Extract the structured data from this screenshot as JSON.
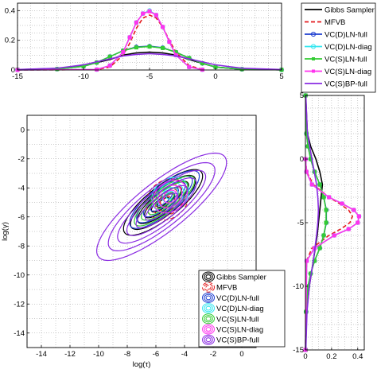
{
  "chart_data": [
    {
      "id": "top",
      "type": "line",
      "xlim": [
        -15,
        5
      ],
      "ylim": [
        0,
        0.45
      ],
      "xticks": [
        -15,
        -10,
        -5,
        0,
        5
      ],
      "yticks": [
        0,
        0.2,
        0.4
      ],
      "yticklabels": [
        "0",
        "0.2",
        "0.4"
      ],
      "grid": true,
      "series": [
        {
          "name": "Gibbs Sampler",
          "x": [
            -15,
            -12,
            -10,
            -8,
            -7,
            -6,
            -5,
            -4,
            -3,
            -2,
            0,
            2,
            5
          ],
          "y": [
            0.002,
            0.01,
            0.03,
            0.07,
            0.1,
            0.115,
            0.12,
            0.115,
            0.1,
            0.07,
            0.02,
            0.005,
            0.001
          ]
        },
        {
          "name": "MFVB",
          "x": [
            -15,
            -9,
            -8,
            -7,
            -6.5,
            -6,
            -5.5,
            -5,
            -4.5,
            -4,
            -3.5,
            -3,
            -2,
            -1
          ],
          "y": [
            0,
            0.002,
            0.02,
            0.1,
            0.18,
            0.28,
            0.35,
            0.37,
            0.35,
            0.29,
            0.2,
            0.12,
            0.03,
            0.003
          ]
        },
        {
          "name": "VC(D)LN-full",
          "x": [
            -15,
            -12,
            -10,
            -9,
            -8,
            -7,
            -6,
            -5,
            -4,
            -3,
            -2,
            -1,
            0,
            2,
            5
          ],
          "y": [
            0.002,
            0.006,
            0.025,
            0.05,
            0.09,
            0.13,
            0.155,
            0.16,
            0.15,
            0.12,
            0.08,
            0.045,
            0.02,
            0.005,
            0.001
          ]
        },
        {
          "name": "VC(D)LN-diag",
          "x": [
            -15,
            -9,
            -8,
            -7,
            -6.5,
            -6,
            -5.5,
            -5,
            -4.5,
            -4,
            -3.5,
            -3,
            -2,
            -1
          ],
          "y": [
            0,
            0.003,
            0.03,
            0.12,
            0.22,
            0.32,
            0.38,
            0.4,
            0.37,
            0.29,
            0.19,
            0.1,
            0.02,
            0.002
          ]
        },
        {
          "name": "VC(S)LN-full",
          "x": [
            -15,
            -12,
            -10,
            -9,
            -8,
            -7,
            -6,
            -5,
            -4,
            -3,
            -2,
            -1,
            0,
            2,
            5
          ],
          "y": [
            0.002,
            0.006,
            0.025,
            0.05,
            0.09,
            0.13,
            0.152,
            0.158,
            0.148,
            0.12,
            0.08,
            0.045,
            0.02,
            0.005,
            0.001
          ]
        },
        {
          "name": "VC(S)LN-diag",
          "x": [
            -15,
            -9,
            -8,
            -7,
            -6.5,
            -6,
            -5.5,
            -5,
            -4.5,
            -4,
            -3.5,
            -3,
            -2,
            -1
          ],
          "y": [
            0,
            0.003,
            0.03,
            0.12,
            0.22,
            0.32,
            0.38,
            0.395,
            0.37,
            0.29,
            0.19,
            0.1,
            0.02,
            0.002
          ]
        },
        {
          "name": "VC(S)BP-full",
          "x": [
            -15,
            -12,
            -10,
            -8,
            -7,
            -6,
            -5,
            -4,
            -3,
            -2,
            0,
            2,
            5
          ],
          "y": [
            0.003,
            0.012,
            0.035,
            0.075,
            0.095,
            0.105,
            0.11,
            0.105,
            0.095,
            0.075,
            0.035,
            0.012,
            0.003
          ]
        }
      ]
    },
    {
      "id": "main",
      "type": "contour",
      "xlim": [
        -15,
        1
      ],
      "ylim": [
        -15,
        1
      ],
      "xticks": [
        -14,
        -12,
        -10,
        -8,
        -6,
        -4,
        -2,
        0
      ],
      "yticks": [
        -14,
        -12,
        -10,
        -8,
        -6,
        -4,
        -2,
        0
      ],
      "xlabel": "log(τ)",
      "ylabel": "log(γ)",
      "grid": true,
      "legend_position": "bottom-right",
      "series": [
        {
          "name": "Gibbs Sampler",
          "center": [
            -5.5,
            -5
          ],
          "levels": [
            [
              3.4,
              1.1
            ],
            [
              2.8,
              0.9
            ],
            [
              2.2,
              0.7
            ],
            [
              1.6,
              0.5
            ],
            [
              1.0,
              0.33
            ],
            [
              0.5,
              0.18
            ]
          ]
        },
        {
          "name": "MFVB",
          "center": [
            -5.2,
            -4.8
          ],
          "levels": [
            [
              1.6,
              1.3
            ],
            [
              1.25,
              1.0
            ],
            [
              0.9,
              0.72
            ],
            [
              0.55,
              0.45
            ],
            [
              0.25,
              0.2
            ]
          ]
        },
        {
          "name": "VC(D)LN-full",
          "center": [
            -5.4,
            -4.8
          ],
          "levels": [
            [
              3.0,
              0.95
            ],
            [
              2.4,
              0.77
            ],
            [
              1.8,
              0.58
            ],
            [
              1.2,
              0.4
            ],
            [
              0.65,
              0.22
            ]
          ]
        },
        {
          "name": "VC(D)LN-diag",
          "center": [
            -5.0,
            -4.5
          ],
          "levels": [
            [
              1.4,
              1.1
            ],
            [
              1.0,
              0.8
            ],
            [
              0.6,
              0.48
            ],
            [
              0.3,
              0.24
            ]
          ]
        },
        {
          "name": "VC(S)LN-full",
          "center": [
            -5.4,
            -4.9
          ],
          "levels": [
            [
              2.6,
              0.8
            ],
            [
              2.0,
              0.62
            ],
            [
              1.4,
              0.45
            ],
            [
              0.8,
              0.27
            ]
          ]
        },
        {
          "name": "VC(S)LN-diag",
          "center": [
            -5.0,
            -4.6
          ],
          "levels": [
            [
              1.3,
              1.0
            ],
            [
              0.9,
              0.7
            ],
            [
              0.5,
              0.4
            ]
          ]
        },
        {
          "name": "VC(S)BP-full",
          "center": [
            -5.6,
            -5.3
          ],
          "levels": [
            [
              5.6,
              1.7
            ],
            [
              4.6,
              1.4
            ],
            [
              3.8,
              1.15
            ],
            [
              3.0,
              0.92
            ],
            [
              2.2,
              0.68
            ],
            [
              1.4,
              0.45
            ]
          ]
        }
      ]
    },
    {
      "id": "right",
      "type": "line",
      "orientation": "horizontal",
      "xlim": [
        0,
        0.45
      ],
      "ylim": [
        -15,
        5
      ],
      "xticks": [
        0,
        0.2,
        0.4
      ],
      "xticklabels": [
        "0",
        "0.2",
        "0.4"
      ],
      "yticks": [
        -15,
        -10,
        -5,
        0,
        5
      ],
      "grid": true,
      "series": [
        {
          "name": "Gibbs Sampler",
          "y": [
            -15,
            -12,
            -10,
            -8,
            -6,
            -5,
            -4,
            -3,
            -2,
            -1,
            0,
            1,
            2,
            5
          ],
          "x": [
            0.002,
            0.01,
            0.03,
            0.06,
            0.09,
            0.1,
            0.11,
            0.12,
            0.13,
            0.11,
            0.08,
            0.04,
            0.015,
            0.002
          ]
        },
        {
          "name": "MFVB",
          "y": [
            -15,
            -8,
            -7,
            -6,
            -5.5,
            -5,
            -4.5,
            -4,
            -3.5,
            -3,
            -2,
            -1,
            0
          ],
          "x": [
            0,
            0.01,
            0.05,
            0.18,
            0.27,
            0.34,
            0.36,
            0.33,
            0.26,
            0.18,
            0.06,
            0.01,
            0.001
          ]
        },
        {
          "name": "VC(D)LN-full",
          "y": [
            -15,
            -12,
            -10,
            -9,
            -8,
            -7,
            -6,
            -5,
            -4,
            -3,
            -2,
            -1,
            0,
            1,
            2,
            5
          ],
          "x": [
            0.002,
            0.005,
            0.02,
            0.04,
            0.07,
            0.11,
            0.14,
            0.16,
            0.16,
            0.14,
            0.11,
            0.07,
            0.04,
            0.02,
            0.008,
            0.001
          ]
        },
        {
          "name": "VC(D)LN-diag",
          "y": [
            -15,
            -8,
            -7,
            -6,
            -5.5,
            -5,
            -4.5,
            -4,
            -3.5,
            -3,
            -2,
            -1,
            0
          ],
          "x": [
            0,
            0.01,
            0.07,
            0.22,
            0.33,
            0.4,
            0.41,
            0.37,
            0.28,
            0.18,
            0.05,
            0.008,
            0.001
          ]
        },
        {
          "name": "VC(S)LN-full",
          "y": [
            -15,
            -12,
            -10,
            -9,
            -8,
            -7,
            -6,
            -5,
            -4,
            -3,
            -2,
            -1,
            0,
            1,
            2,
            5
          ],
          "x": [
            0.002,
            0.005,
            0.02,
            0.04,
            0.07,
            0.11,
            0.14,
            0.158,
            0.158,
            0.14,
            0.11,
            0.07,
            0.04,
            0.02,
            0.008,
            0.001
          ]
        },
        {
          "name": "VC(S)LN-diag",
          "y": [
            -15,
            -8,
            -7,
            -6,
            -5.5,
            -5,
            -4.5,
            -4,
            -3.5,
            -3,
            -2,
            -1,
            0
          ],
          "x": [
            0,
            0.01,
            0.07,
            0.22,
            0.33,
            0.4,
            0.41,
            0.37,
            0.28,
            0.18,
            0.05,
            0.008,
            0.001
          ]
        },
        {
          "name": "VC(S)BP-full",
          "y": [
            -15,
            -12,
            -10,
            -8,
            -6,
            -5,
            -4,
            -3,
            -2,
            0,
            2,
            5
          ],
          "x": [
            0.003,
            0.012,
            0.03,
            0.06,
            0.085,
            0.095,
            0.1,
            0.095,
            0.085,
            0.05,
            0.015,
            0.003
          ]
        }
      ]
    }
  ],
  "legend_top": {
    "entries": [
      "Gibbs Sampler",
      "MFVB",
      "VC(D)LN-full",
      "VC(D)LN-diag",
      "VC(S)LN-full",
      "VC(S)LN-diag",
      "VC(S)BP-full"
    ]
  },
  "legend_main": {
    "entries": [
      "Gibbs Sampler",
      "MFVB",
      "VC(D)LN-full",
      "VC(D)LN-diag",
      "VC(S)LN-full",
      "VC(S)LN-diag",
      "VC(S)BP-full"
    ]
  },
  "styles": {
    "Gibbs Sampler": {
      "color": "#000000",
      "dash": "",
      "marker": "none"
    },
    "MFVB": {
      "color": "#e41a1c",
      "dash": "5,3",
      "marker": "none"
    },
    "VC(D)LN-full": {
      "color": "#1f3fd1",
      "dash": "",
      "marker": "circle"
    },
    "VC(D)LN-diag": {
      "color": "#33e6f0",
      "dash": "",
      "marker": "circle"
    },
    "VC(S)LN-full": {
      "color": "#33cc33",
      "dash": "",
      "marker": "square"
    },
    "VC(S)LN-diag": {
      "color": "#ff33ee",
      "dash": "",
      "marker": "square"
    },
    "VC(S)BP-full": {
      "color": "#8a2be2",
      "dash": "",
      "marker": "none"
    }
  }
}
